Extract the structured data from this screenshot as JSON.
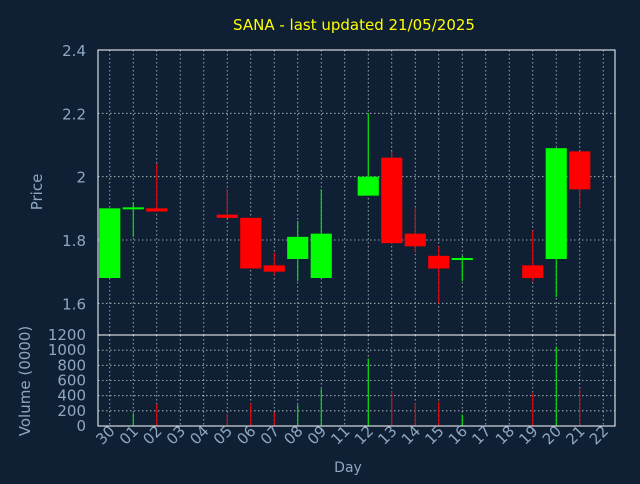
{
  "colors": {
    "background": "#0f2034",
    "axis_text": "#8fa6c2",
    "title_text": "#ffff00",
    "up": "#00ff00",
    "down": "#ff0000",
    "grid": "#ffffff"
  },
  "chart_data": [
    {
      "type": "candlestick",
      "title": "SANA - last updated 21/05/2025",
      "ylabel": "Price",
      "ylim": [
        1.5,
        2.4
      ],
      "y_ticks": [
        "1.6",
        "1.8",
        "2",
        "2.2",
        "2.4"
      ],
      "grid": true,
      "candles": [
        {
          "x": "30",
          "open": 1.68,
          "high": 1.9,
          "low": 1.68,
          "close": 1.9
        },
        {
          "x": "01",
          "open": 1.9,
          "high": 1.92,
          "low": 1.81,
          "close": 1.9
        },
        {
          "x": "02",
          "open": 1.9,
          "high": 2.04,
          "low": 1.89,
          "close": 1.89
        },
        {
          "x": "05",
          "open": 1.88,
          "high": 1.96,
          "low": 1.87,
          "close": 1.87
        },
        {
          "x": "06",
          "open": 1.87,
          "high": 1.87,
          "low": 1.71,
          "close": 1.71
        },
        {
          "x": "07",
          "open": 1.72,
          "high": 1.76,
          "low": 1.69,
          "close": 1.7
        },
        {
          "x": "08",
          "open": 1.74,
          "high": 1.86,
          "low": 1.67,
          "close": 1.81
        },
        {
          "x": "09",
          "open": 1.68,
          "high": 1.96,
          "low": 1.68,
          "close": 1.82
        },
        {
          "x": "12",
          "open": 1.94,
          "high": 2.2,
          "low": 1.94,
          "close": 2.0
        },
        {
          "x": "13",
          "open": 2.06,
          "high": 2.08,
          "low": 1.79,
          "close": 1.79
        },
        {
          "x": "14",
          "open": 1.82,
          "high": 1.9,
          "low": 1.76,
          "close": 1.78
        },
        {
          "x": "15",
          "open": 1.75,
          "high": 1.78,
          "low": 1.6,
          "close": 1.71
        },
        {
          "x": "16",
          "open": 1.74,
          "high": 1.75,
          "low": 1.67,
          "close": 1.74
        },
        {
          "x": "19",
          "open": 1.72,
          "high": 1.83,
          "low": 1.67,
          "close": 1.68
        },
        {
          "x": "20",
          "open": 1.74,
          "high": 2.09,
          "low": 1.62,
          "close": 2.09
        },
        {
          "x": "21",
          "open": 2.08,
          "high": 2.08,
          "low": 1.9,
          "close": 1.96
        }
      ]
    },
    {
      "type": "bar",
      "ylabel": "Volume (0000)",
      "xlabel": "Day",
      "ylim": [
        0,
        1200
      ],
      "y_ticks": [
        "0",
        "200",
        "400",
        "600",
        "800",
        "1000",
        "1200"
      ],
      "grid": true,
      "x_ticks": [
        "30",
        "01",
        "02",
        "03",
        "04",
        "05",
        "06",
        "07",
        "08",
        "09",
        "11",
        "12",
        "13",
        "14",
        "15",
        "16",
        "17",
        "18",
        "19",
        "20",
        "21",
        "22"
      ],
      "volumes": [
        {
          "x": "30",
          "value": 0,
          "dir": "up"
        },
        {
          "x": "01",
          "value": 170,
          "dir": "up"
        },
        {
          "x": "02",
          "value": 290,
          "dir": "down"
        },
        {
          "x": "05",
          "value": 160,
          "dir": "down"
        },
        {
          "x": "06",
          "value": 300,
          "dir": "down"
        },
        {
          "x": "07",
          "value": 180,
          "dir": "down"
        },
        {
          "x": "08",
          "value": 280,
          "dir": "up"
        },
        {
          "x": "09",
          "value": 490,
          "dir": "up"
        },
        {
          "x": "12",
          "value": 890,
          "dir": "up"
        },
        {
          "x": "13",
          "value": 460,
          "dir": "down"
        },
        {
          "x": "14",
          "value": 300,
          "dir": "down"
        },
        {
          "x": "15",
          "value": 320,
          "dir": "down"
        },
        {
          "x": "16",
          "value": 150,
          "dir": "up"
        },
        {
          "x": "19",
          "value": 430,
          "dir": "down"
        },
        {
          "x": "20",
          "value": 1050,
          "dir": "up"
        },
        {
          "x": "21",
          "value": 500,
          "dir": "down"
        }
      ]
    }
  ]
}
